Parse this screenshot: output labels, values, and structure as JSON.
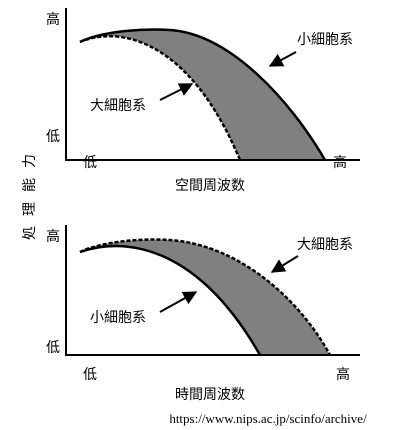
{
  "y_axis_label": "処理能力",
  "panels": [
    {
      "y_high": "高",
      "y_low": "低",
      "x_low": "低",
      "x_high": "高",
      "x_label": "空間周波数",
      "upper_curve_label": "小細胞系",
      "lower_curve_label": "大細胞系"
    },
    {
      "y_high": "高",
      "y_low": "低",
      "x_low": "低",
      "x_high": "高",
      "x_label": "時間周波数",
      "upper_curve_label": "大細胞系",
      "lower_curve_label": "小細胞系"
    }
  ],
  "source": "https://www.nips.ac.jp/scinfo/archive/"
}
